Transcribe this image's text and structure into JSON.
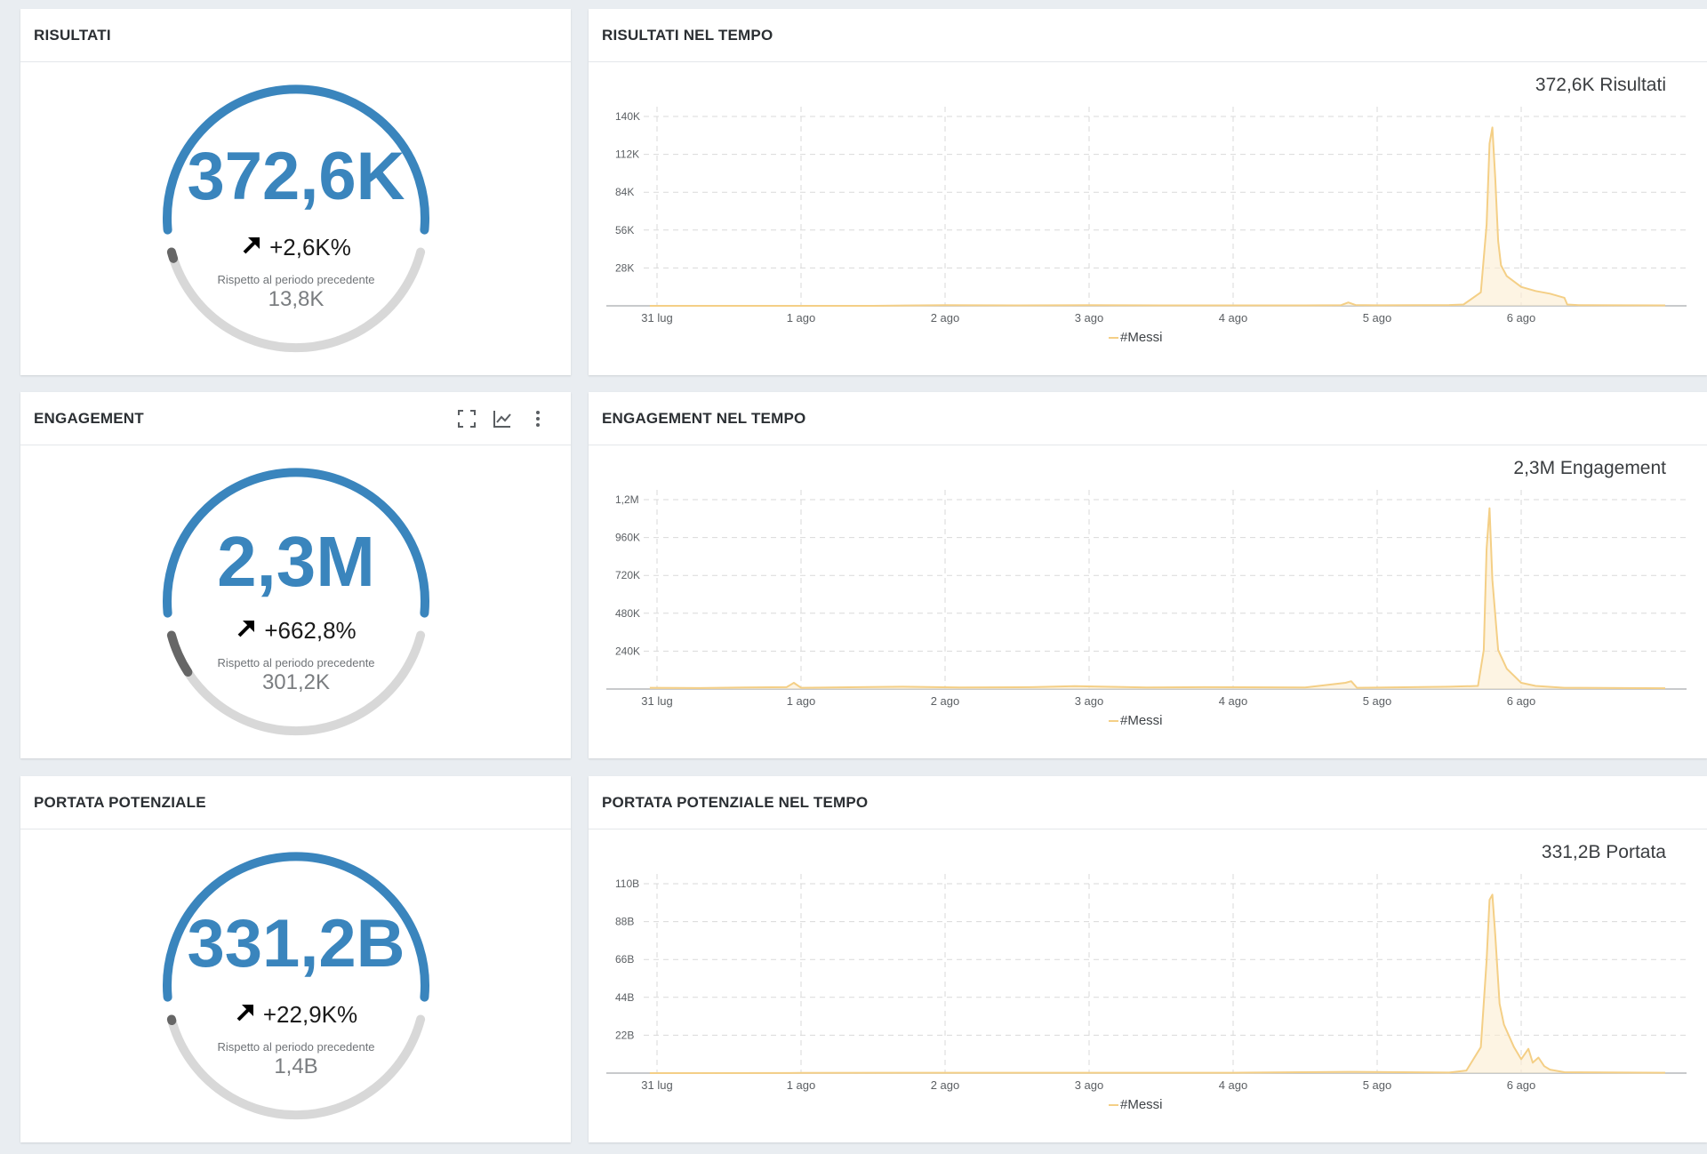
{
  "colors": {
    "gauge_blue": "#3a85bd",
    "gauge_grey": "#d8d8d8",
    "gauge_dark": "#666666",
    "series": "#f4cf86",
    "series_fill": "#fbecd0"
  },
  "icons": {
    "expand": "expand-icon",
    "chart": "line-chart-icon",
    "more": "more-vertical-icon",
    "trend": "arrow-up-right-icon"
  },
  "panels": [
    {
      "title": "RISULTATI",
      "value": "372,6K",
      "delta": "+2,6K%",
      "compare_label": "Rispetto al periodo precedente",
      "previous": "13,8K",
      "previous_share": 0.02,
      "has_toolbar": false
    },
    {
      "title": "ENGAGEMENT",
      "value": "2,3M",
      "delta": "+662,8%",
      "compare_label": "Rispetto al periodo precedente",
      "previous": "301,2K",
      "previous_share": 0.12,
      "has_toolbar": true
    },
    {
      "title": "PORTATA POTENZIALE",
      "value": "331,2B",
      "delta": "+22,9K%",
      "compare_label": "Rispetto al periodo precedente",
      "previous": "1,4B",
      "previous_share": 0.004,
      "has_toolbar": false
    }
  ],
  "charts": [
    {
      "title": "RISULTATI NEL TEMPO",
      "total": "372,6K Risultati"
    },
    {
      "title": "ENGAGEMENT NEL TEMPO",
      "total": "2,3M Engagement"
    },
    {
      "title": "PORTATA POTENZIALE NEL TEMPO",
      "total": "331,2B Portata"
    }
  ],
  "chart_data": [
    {
      "type": "area",
      "title": "",
      "x_ticks": [
        "31 lug",
        "1 ago",
        "2 ago",
        "3 ago",
        "4 ago",
        "5 ago",
        "6 ago"
      ],
      "y_ticks": [
        "28K",
        "56K",
        "84K",
        "112K",
        "140K"
      ],
      "ylim": [
        0,
        150000
      ],
      "legend": "bottom",
      "grid": true,
      "series": [
        {
          "name": "#Messi",
          "x": [
            -0.05,
            0.5,
            1.0,
            1.5,
            2.0,
            2.5,
            3.0,
            3.5,
            4.0,
            4.5,
            4.75,
            4.8,
            4.85,
            5.0,
            5.5,
            5.6,
            5.72,
            5.76,
            5.78,
            5.8,
            5.82,
            5.84,
            5.86,
            5.9,
            6.0,
            6.1,
            6.2,
            6.3,
            6.32,
            6.4,
            7.0
          ],
          "y": [
            0,
            0,
            0,
            0,
            500,
            300,
            500,
            300,
            300,
            300,
            500,
            2500,
            600,
            400,
            600,
            1000,
            10000,
            60000,
            120000,
            132000,
            95000,
            48000,
            30000,
            22000,
            14000,
            11000,
            9000,
            6000,
            1000,
            500,
            300
          ]
        }
      ]
    },
    {
      "type": "area",
      "title": "",
      "x_ticks": [
        "31 lug",
        "1 ago",
        "2 ago",
        "3 ago",
        "4 ago",
        "5 ago",
        "6 ago"
      ],
      "y_ticks": [
        "240K",
        "480K",
        "720K",
        "960K",
        "1,2M"
      ],
      "ylim": [
        0,
        1300000
      ],
      "legend": "bottom",
      "grid": true,
      "series": [
        {
          "name": "#Messi",
          "x": [
            -0.05,
            0.3,
            0.6,
            0.9,
            0.95,
            1.0,
            1.4,
            1.7,
            2.1,
            2.6,
            2.9,
            3.4,
            3.8,
            4.5,
            4.78,
            4.82,
            4.86,
            5.5,
            5.7,
            5.74,
            5.76,
            5.78,
            5.8,
            5.84,
            5.9,
            6.0,
            6.1,
            6.3,
            7.0
          ],
          "y": [
            8000,
            6000,
            10000,
            12000,
            40000,
            8000,
            12000,
            15000,
            10000,
            12000,
            18000,
            10000,
            12000,
            10000,
            40000,
            50000,
            8000,
            15000,
            20000,
            250000,
            900000,
            1160000,
            700000,
            250000,
            130000,
            40000,
            20000,
            8000,
            5000
          ]
        }
      ]
    },
    {
      "type": "area",
      "title": "",
      "x_ticks": [
        "31 lug",
        "1 ago",
        "2 ago",
        "3 ago",
        "4 ago",
        "5 ago",
        "6 ago"
      ],
      "y_ticks": [
        "22B",
        "44B",
        "66B",
        "88B",
        "110B"
      ],
      "ylim": [
        0,
        117000000000
      ],
      "legend": "bottom",
      "grid": true,
      "series": [
        {
          "name": "#Messi",
          "x": [
            -0.05,
            1.0,
            2.0,
            3.0,
            4.0,
            4.8,
            5.5,
            5.62,
            5.72,
            5.76,
            5.78,
            5.8,
            5.82,
            5.85,
            5.88,
            5.95,
            6.0,
            6.05,
            6.08,
            6.12,
            6.16,
            6.2,
            6.3,
            7.0
          ],
          "y": [
            0,
            100000000,
            200000000,
            200000000,
            200000000,
            700000000,
            300000000,
            1500000000,
            15000000000,
            65000000000,
            100000000000,
            103000000000,
            80000000000,
            40000000000,
            28000000000,
            15000000000,
            8000000000,
            14000000000,
            6000000000,
            9000000000,
            4000000000,
            2000000000,
            500000000,
            200000000
          ]
        }
      ]
    }
  ]
}
